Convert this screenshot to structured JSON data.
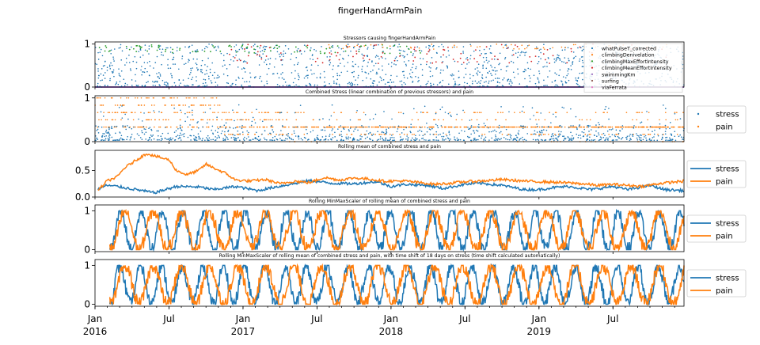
{
  "figure": {
    "suptitle": "fingerHandArmPain"
  },
  "colors": {
    "blue": "#1f77b4",
    "orange": "#ff7f0e",
    "green": "#2ca02c",
    "red": "#d62728",
    "purple": "#9467bd",
    "brown": "#8c564b",
    "pink": "#e377c2"
  },
  "chart_data": [
    {
      "type": "scatter",
      "title": "Stressors causing fingerHandArmPain",
      "ylim": [
        0,
        1.05
      ],
      "yticks": [
        0,
        1
      ],
      "legend_position": "top-right-inside",
      "series": [
        {
          "name": "whatPulseT_corrected",
          "color": "#1f77b4",
          "pattern": "dense values 0.0-1.0 across whole range, mostly 0.05-0.5"
        },
        {
          "name": "climbingDenivelation",
          "color": "#ff7f0e",
          "pattern": "sparse points near 0.9-1.0 from mid 2017"
        },
        {
          "name": "climbingMaxEffortIntensity",
          "color": "#2ca02c",
          "pattern": "points near 0.8-1.0 mainly 2016-2017"
        },
        {
          "name": "climbingMeanEffortIntensity",
          "color": "#d62728",
          "pattern": "points near 0.6-1.0 from 2017"
        },
        {
          "name": "swimmingKm",
          "color": "#9467bd",
          "pattern": "constant 0"
        },
        {
          "name": "surfing",
          "color": "#8c564b",
          "pattern": "constant 0"
        },
        {
          "name": "viaFerrata",
          "color": "#e377c2",
          "pattern": "constant 0"
        }
      ]
    },
    {
      "type": "scatter",
      "title": "Combined Stress (linear combination of previous stressors) and pain",
      "ylim": [
        0,
        1.05
      ],
      "yticks": [
        0,
        1
      ],
      "legend_position": "outside-right",
      "series": [
        {
          "name": "stress",
          "color": "#1f77b4",
          "pattern": "values 0-0.8, mostly 0.05-0.2"
        },
        {
          "name": "pain",
          "color": "#ff7f0e",
          "pattern": "discrete levels 0, 0.17, 0.33, 0.5, 0.67, 0.83, 1.0; high in 2016, ~0.33 later"
        }
      ]
    },
    {
      "type": "line",
      "title": "Rolling mean of combined stress and pain",
      "ylim": [
        0,
        0.88
      ],
      "yticks": [
        0.0,
        0.5
      ],
      "legend_position": "outside-right",
      "series": [
        {
          "name": "stress",
          "color": "#1f77b4",
          "points": [
            [
              0.02,
              0.15
            ],
            [
              0.08,
              0.22
            ],
            [
              0.15,
              0.2
            ],
            [
              0.3,
              0.13
            ],
            [
              0.4,
              0.08
            ],
            [
              0.45,
              0.12
            ],
            [
              0.55,
              0.2
            ],
            [
              0.7,
              0.19
            ],
            [
              0.8,
              0.14
            ],
            [
              0.95,
              0.2
            ],
            [
              1.1,
              0.12
            ],
            [
              1.2,
              0.18
            ],
            [
              1.3,
              0.23
            ],
            [
              1.45,
              0.31
            ],
            [
              1.6,
              0.26
            ],
            [
              1.75,
              0.25
            ],
            [
              1.9,
              0.29
            ],
            [
              2.0,
              0.2
            ],
            [
              2.1,
              0.24
            ],
            [
              2.25,
              0.22
            ],
            [
              2.35,
              0.16
            ],
            [
              2.5,
              0.24
            ],
            [
              2.6,
              0.26
            ],
            [
              2.75,
              0.22
            ],
            [
              2.9,
              0.14
            ],
            [
              3.0,
              0.14
            ],
            [
              3.1,
              0.18
            ],
            [
              3.2,
              0.2
            ],
            [
              3.35,
              0.14
            ],
            [
              3.5,
              0.2
            ],
            [
              3.6,
              0.14
            ],
            [
              3.75,
              0.22
            ],
            [
              3.85,
              0.14
            ],
            [
              3.98,
              0.12
            ]
          ]
        },
        {
          "name": "pain",
          "color": "#ff7f0e",
          "points": [
            [
              0.02,
              0.12
            ],
            [
              0.08,
              0.3
            ],
            [
              0.15,
              0.38
            ],
            [
              0.2,
              0.55
            ],
            [
              0.28,
              0.7
            ],
            [
              0.35,
              0.82
            ],
            [
              0.42,
              0.76
            ],
            [
              0.5,
              0.7
            ],
            [
              0.55,
              0.5
            ],
            [
              0.62,
              0.42
            ],
            [
              0.7,
              0.5
            ],
            [
              0.75,
              0.62
            ],
            [
              0.8,
              0.55
            ],
            [
              0.88,
              0.45
            ],
            [
              0.95,
              0.32
            ],
            [
              1.05,
              0.3
            ],
            [
              1.15,
              0.33
            ],
            [
              1.25,
              0.25
            ],
            [
              1.35,
              0.3
            ],
            [
              1.45,
              0.27
            ],
            [
              1.55,
              0.37
            ],
            [
              1.65,
              0.32
            ],
            [
              1.75,
              0.36
            ],
            [
              1.85,
              0.34
            ],
            [
              1.95,
              0.3
            ],
            [
              2.1,
              0.3
            ],
            [
              2.2,
              0.27
            ],
            [
              2.3,
              0.24
            ],
            [
              2.4,
              0.26
            ],
            [
              2.5,
              0.29
            ],
            [
              2.6,
              0.3
            ],
            [
              2.75,
              0.33
            ],
            [
              2.9,
              0.3
            ],
            [
              3.0,
              0.29
            ],
            [
              3.1,
              0.28
            ],
            [
              3.25,
              0.26
            ],
            [
              3.4,
              0.22
            ],
            [
              3.5,
              0.24
            ],
            [
              3.6,
              0.22
            ],
            [
              3.7,
              0.2
            ],
            [
              3.8,
              0.25
            ],
            [
              3.9,
              0.28
            ],
            [
              3.98,
              0.3
            ]
          ]
        }
      ]
    },
    {
      "type": "line",
      "title": "Rolling MinMaxScaler of rolling mean of combined stress and pain",
      "ylim": [
        -0.05,
        1.15
      ],
      "yticks": [
        0,
        1
      ],
      "legend_position": "outside-right",
      "series": [
        {
          "name": "stress",
          "color": "#1f77b4",
          "pattern": "oscillating 0-1, period ~0.15 yr"
        },
        {
          "name": "pain",
          "color": "#ff7f0e",
          "pattern": "oscillating 0-1, period ~0.2 yr"
        }
      ]
    },
    {
      "type": "line",
      "title": "Rolling MinMaxScaler of rolling mean of combined stress and pain, with time shift of 18 days on stress (time shift calculated automatically)",
      "ylim": [
        -0.05,
        1.15
      ],
      "yticks": [
        0,
        1
      ],
      "legend_position": "outside-right",
      "series": [
        {
          "name": "stress",
          "color": "#1f77b4",
          "pattern": "oscillating 0-1, shifted 18 days"
        },
        {
          "name": "pain",
          "color": "#ff7f0e",
          "pattern": "oscillating 0-1"
        }
      ]
    }
  ],
  "x_axis": {
    "range_years": [
      2016.0,
      2019.98
    ],
    "ticks": [
      {
        "label": "Jan",
        "sub": "2016",
        "pos": 0.0
      },
      {
        "label": "Jul",
        "sub": "",
        "pos": 0.5
      },
      {
        "label": "Jan",
        "sub": "2017",
        "pos": 1.0
      },
      {
        "label": "Jul",
        "sub": "",
        "pos": 1.5
      },
      {
        "label": "Jan",
        "sub": "2018",
        "pos": 2.0
      },
      {
        "label": "Jul",
        "sub": "",
        "pos": 2.5
      },
      {
        "label": "Jan",
        "sub": "2019",
        "pos": 3.0
      },
      {
        "label": "Jul",
        "sub": "",
        "pos": 3.5
      }
    ]
  }
}
